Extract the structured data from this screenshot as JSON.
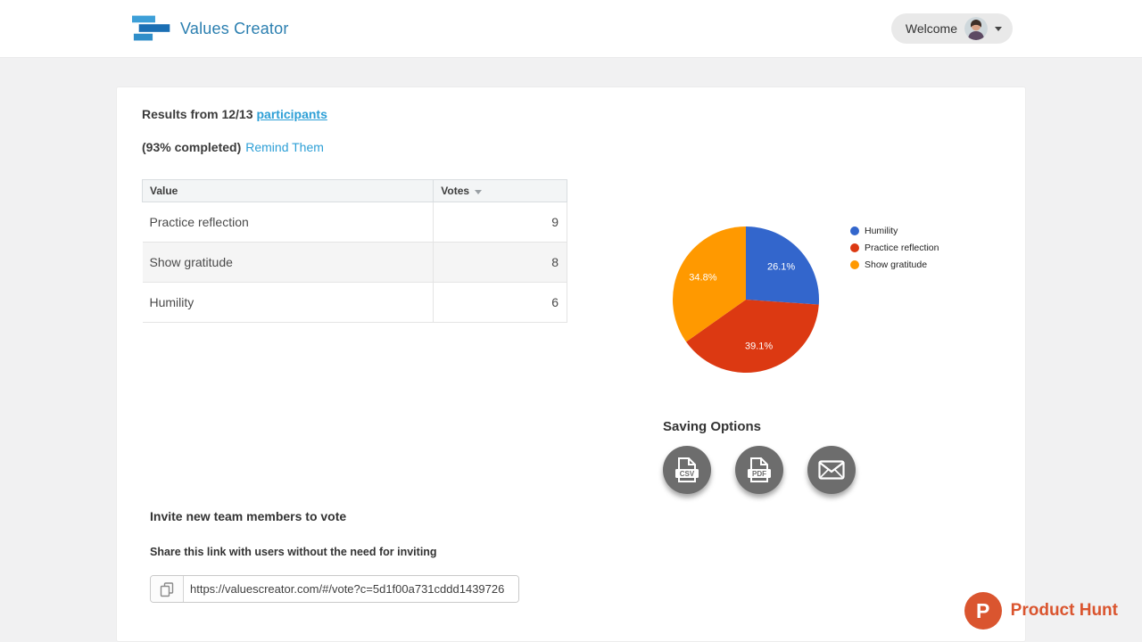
{
  "header": {
    "brand": "Values Creator",
    "welcome": "Welcome"
  },
  "results": {
    "prefix": "Results from 12/13",
    "participants": "participants",
    "completed": "(93% completed)",
    "remind": "Remind Them"
  },
  "table": {
    "headers": [
      "Value",
      "Votes"
    ],
    "rows": [
      {
        "value": "Practice reflection",
        "votes": "9"
      },
      {
        "value": "Show gratitude",
        "votes": "8"
      },
      {
        "value": "Humility",
        "votes": "6"
      }
    ]
  },
  "chart_data": {
    "type": "pie",
    "labels": [
      "Humility",
      "Practice reflection",
      "Show gratitude"
    ],
    "values": [
      26.1,
      39.1,
      34.8
    ],
    "display_labels": [
      "26.1%",
      "39.1%",
      "34.8%"
    ],
    "colors": [
      "#3366cc",
      "#dc3912",
      "#ff9900"
    ],
    "legend_position": "right",
    "start_angle_deg": -90,
    "direction": "clockwise"
  },
  "saving": {
    "title": "Saving Options",
    "csv_label": "CSV",
    "pdf_label": "PDF"
  },
  "invite": {
    "title": "Invite new team members to vote",
    "subtitle": "Share this link with users without the need for inviting",
    "link_value": "https://valuescreator.com/#/vote?c=5d1f00a731cddd1439726"
  },
  "product_hunt": {
    "initial": "P",
    "label": "Product Hunt"
  },
  "colors": {
    "link": "#2d9fd6",
    "brand": "#2b7fb0",
    "product_hunt": "#da552f",
    "saving_circle": "#6d6d6d"
  }
}
